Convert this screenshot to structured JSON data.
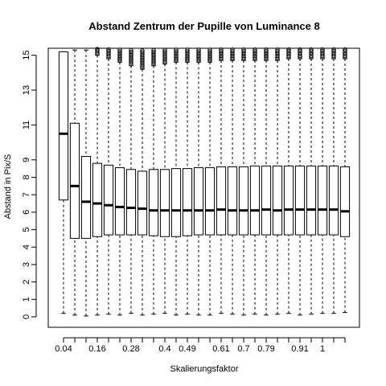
{
  "chart_data": {
    "type": "box",
    "title": "Abstand Zentrum der Pupille von Luminance 8",
    "xlabel": "Skalierungsfaktor",
    "ylabel": "Abstand in Pix/S",
    "ylim": [
      -0.6,
      15.4
    ],
    "y_ticks": [
      0,
      1,
      2,
      3,
      4,
      5,
      6,
      7,
      8,
      9,
      11,
      13,
      15
    ],
    "x_tick_labels": [
      {
        "index": 0,
        "label": "0.04"
      },
      {
        "index": 3,
        "label": "0.16"
      },
      {
        "index": 6,
        "label": "0.28"
      },
      {
        "index": 9,
        "label": "0.4"
      },
      {
        "index": 11,
        "label": "0.49"
      },
      {
        "index": 14,
        "label": "0.61"
      },
      {
        "index": 16,
        "label": "0.7"
      },
      {
        "index": 18,
        "label": "0.79"
      },
      {
        "index": 21,
        "label": "0.91"
      },
      {
        "index": 23,
        "label": "1"
      }
    ],
    "boxes": [
      {
        "min": 0.2,
        "q1": 6.7,
        "median": 10.5,
        "q3": 15.2,
        "max": 15.2,
        "outliers": false
      },
      {
        "min": 0.1,
        "q1": 4.5,
        "median": 7.5,
        "q3": 11.1,
        "max": 15.3,
        "outliers": false
      },
      {
        "min": 0.05,
        "q1": 4.5,
        "median": 6.6,
        "q3": 9.2,
        "max": 15.3,
        "outliers": false
      },
      {
        "min": 0.1,
        "q1": 4.6,
        "median": 6.5,
        "q3": 8.8,
        "max": 15.0,
        "outliers": true
      },
      {
        "min": 0.15,
        "q1": 4.7,
        "median": 6.4,
        "q3": 8.7,
        "max": 14.8,
        "outliers": true
      },
      {
        "min": 0.1,
        "q1": 4.7,
        "median": 6.3,
        "q3": 8.55,
        "max": 14.6,
        "outliers": true
      },
      {
        "min": 0.2,
        "q1": 4.7,
        "median": 6.25,
        "q3": 8.45,
        "max": 14.4,
        "outliers": true
      },
      {
        "min": 0.1,
        "q1": 4.7,
        "median": 6.2,
        "q3": 8.35,
        "max": 14.2,
        "outliers": true
      },
      {
        "min": 0.15,
        "q1": 4.65,
        "median": 6.1,
        "q3": 8.45,
        "max": 14.4,
        "outliers": true
      },
      {
        "min": 0.2,
        "q1": 4.6,
        "median": 6.1,
        "q3": 8.45,
        "max": 14.5,
        "outliers": true
      },
      {
        "min": 0.1,
        "q1": 4.6,
        "median": 6.1,
        "q3": 8.5,
        "max": 14.6,
        "outliers": true
      },
      {
        "min": 0.15,
        "q1": 4.65,
        "median": 6.1,
        "q3": 8.5,
        "max": 14.6,
        "outliers": true
      },
      {
        "min": 0.1,
        "q1": 4.7,
        "median": 6.1,
        "q3": 8.55,
        "max": 14.6,
        "outliers": true
      },
      {
        "min": 0.1,
        "q1": 4.7,
        "median": 6.1,
        "q3": 8.55,
        "max": 14.6,
        "outliers": true
      },
      {
        "min": 0.2,
        "q1": 4.7,
        "median": 6.15,
        "q3": 8.6,
        "max": 14.7,
        "outliers": true
      },
      {
        "min": 0.15,
        "q1": 4.7,
        "median": 6.1,
        "q3": 8.6,
        "max": 14.7,
        "outliers": true
      },
      {
        "min": 0.1,
        "q1": 4.7,
        "median": 6.1,
        "q3": 8.6,
        "max": 14.7,
        "outliers": true
      },
      {
        "min": 0.15,
        "q1": 4.7,
        "median": 6.1,
        "q3": 8.65,
        "max": 14.7,
        "outliers": true
      },
      {
        "min": 0.1,
        "q1": 4.7,
        "median": 6.15,
        "q3": 8.65,
        "max": 14.7,
        "outliers": true
      },
      {
        "min": 0.15,
        "q1": 4.7,
        "median": 6.1,
        "q3": 8.65,
        "max": 14.7,
        "outliers": true
      },
      {
        "min": 0.2,
        "q1": 4.7,
        "median": 6.15,
        "q3": 8.65,
        "max": 14.8,
        "outliers": true
      },
      {
        "min": 0.1,
        "q1": 4.7,
        "median": 6.15,
        "q3": 8.65,
        "max": 14.8,
        "outliers": true
      },
      {
        "min": 0.15,
        "q1": 4.7,
        "median": 6.15,
        "q3": 8.65,
        "max": 14.8,
        "outliers": true
      },
      {
        "min": 0.2,
        "q1": 4.7,
        "median": 6.15,
        "q3": 8.65,
        "max": 14.8,
        "outliers": true
      },
      {
        "min": 0.2,
        "q1": 4.7,
        "median": 6.15,
        "q3": 8.65,
        "max": 14.8,
        "outliers": true
      },
      {
        "min": 0.25,
        "q1": 4.6,
        "median": 6.05,
        "q3": 8.6,
        "max": 14.8,
        "outliers": true
      }
    ]
  }
}
